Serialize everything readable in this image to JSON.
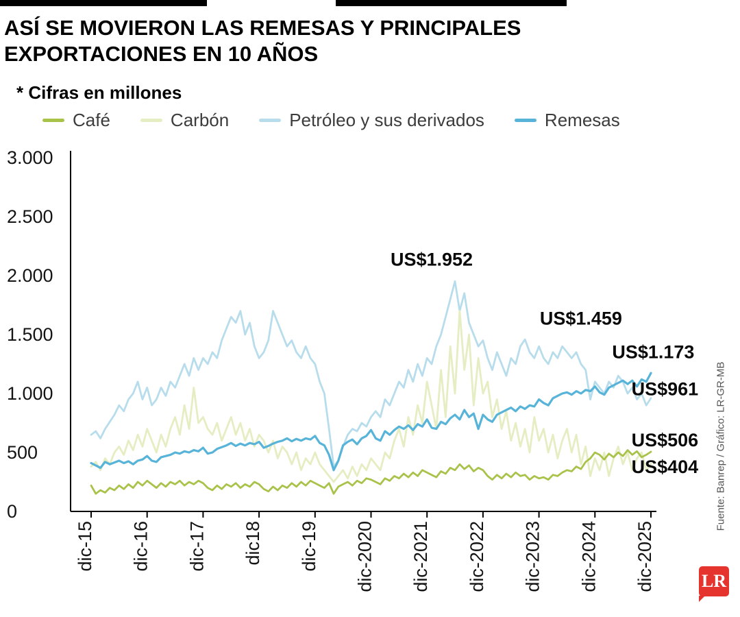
{
  "page": {
    "title_line1": "ASÍ SE MOVIERON LAS REMESAS Y PRINCIPALES",
    "title_line2": "EXPORTACIONES EN 10 AÑOS",
    "subtitle": "* Cifras en millones",
    "source": "Fuente: Banrep / Gráfico: LR-GR-MB",
    "logo_text": "LR",
    "logo_color": "#e5332d"
  },
  "chart_data": {
    "type": "line",
    "title": "Así se movieron las remesas y principales exportaciones en 10 años",
    "note": "* Cifras en millones",
    "grid": false,
    "legend_position": "top",
    "ylim": [
      0,
      3000
    ],
    "y_ticks": [
      0,
      500,
      1000,
      1500,
      2000,
      2500,
      3000
    ],
    "y_tick_labels": [
      "0",
      "500",
      "1.000",
      "1.500",
      "2.000",
      "2.500",
      "3.000"
    ],
    "x_tick_labels": [
      "dic-15",
      "dic-16",
      "dic-17",
      "dic18",
      "dic-19",
      "dic-2020",
      "dic-2021",
      "dic-2022",
      "dic-2023",
      "dic-2024",
      "dic-2025"
    ],
    "x_frequency": "monthly",
    "series": [
      {
        "name": "Café",
        "key": "cafe",
        "color": "#a9c24a",
        "values": [
          220,
          150,
          180,
          160,
          200,
          180,
          220,
          190,
          230,
          200,
          250,
          220,
          260,
          230,
          200,
          240,
          210,
          250,
          230,
          260,
          220,
          250,
          230,
          260,
          240,
          200,
          180,
          220,
          190,
          230,
          210,
          240,
          200,
          230,
          210,
          250,
          230,
          190,
          170,
          210,
          180,
          220,
          200,
          240,
          210,
          250,
          220,
          260,
          240,
          220,
          200,
          240,
          150,
          210,
          230,
          250,
          220,
          260,
          240,
          280,
          270,
          250,
          230,
          280,
          260,
          300,
          280,
          320,
          290,
          330,
          300,
          350,
          330,
          310,
          290,
          340,
          320,
          370,
          350,
          400,
          360,
          390,
          340,
          370,
          350,
          300,
          270,
          310,
          280,
          320,
          290,
          330,
          300,
          310,
          270,
          300,
          280,
          290,
          270,
          310,
          300,
          330,
          350,
          340,
          380,
          360,
          420,
          450,
          500,
          480,
          440,
          490,
          460,
          500,
          470,
          520,
          480,
          510,
          460,
          480,
          506
        ]
      },
      {
        "name": "Carbón",
        "key": "carbon",
        "color": "#e5edc2",
        "values": [
          380,
          420,
          350,
          450,
          400,
          500,
          550,
          480,
          600,
          520,
          650,
          550,
          700,
          600,
          500,
          650,
          550,
          700,
          800,
          650,
          900,
          700,
          1050,
          750,
          800,
          700,
          650,
          750,
          600,
          700,
          800,
          650,
          750,
          600,
          700,
          550,
          650,
          600,
          500,
          600,
          450,
          550,
          500,
          400,
          500,
          350,
          450,
          400,
          500,
          400,
          350,
          300,
          250,
          300,
          350,
          280,
          380,
          300,
          400,
          350,
          450,
          400,
          350,
          500,
          450,
          600,
          700,
          550,
          800,
          650,
          900,
          750,
          1100,
          900,
          700,
          1200,
          800,
          1400,
          1000,
          1700,
          1200,
          1500,
          900,
          1300,
          1000,
          1100,
          800,
          950,
          700,
          850,
          600,
          750,
          550,
          700,
          500,
          800,
          600,
          700,
          500,
          650,
          450,
          600,
          700,
          500,
          650,
          400,
          550,
          300,
          450,
          350,
          500,
          300,
          450,
          550,
          400,
          500,
          350,
          450,
          500,
          350,
          404
        ]
      },
      {
        "name": "Petróleo y sus derivados",
        "key": "petroleo",
        "color": "#b7dcec",
        "values": [
          650,
          680,
          620,
          700,
          760,
          820,
          900,
          850,
          950,
          1000,
          1100,
          950,
          1050,
          900,
          950,
          1050,
          980,
          1100,
          1050,
          1150,
          1250,
          1150,
          1300,
          1200,
          1300,
          1250,
          1350,
          1300,
          1450,
          1550,
          1650,
          1600,
          1700,
          1500,
          1600,
          1400,
          1300,
          1350,
          1450,
          1700,
          1600,
          1500,
          1400,
          1450,
          1350,
          1300,
          1400,
          1300,
          1250,
          1100,
          1000,
          700,
          380,
          430,
          550,
          650,
          700,
          680,
          750,
          720,
          800,
          850,
          800,
          950,
          900,
          1000,
          1100,
          1050,
          1200,
          1100,
          1250,
          1150,
          1300,
          1250,
          1400,
          1500,
          1650,
          1800,
          1952,
          1700,
          1850,
          1600,
          1500,
          1400,
          1450,
          1300,
          1200,
          1350,
          1250,
          1150,
          1300,
          1250,
          1400,
          1459,
          1350,
          1300,
          1400,
          1300,
          1250,
          1350,
          1300,
          1400,
          1350,
          1300,
          1350,
          1250,
          1200,
          950,
          1100,
          1050,
          1000,
          1100,
          1050,
          1150,
          1100,
          1000,
          1050,
          950,
          1000,
          900,
          961
        ]
      },
      {
        "name": "Remesas",
        "key": "remesas",
        "color": "#57b4d8",
        "values": [
          410,
          390,
          370,
          420,
          400,
          415,
          430,
          410,
          425,
          400,
          430,
          440,
          470,
          430,
          420,
          460,
          470,
          480,
          500,
          490,
          510,
          500,
          520,
          510,
          540,
          490,
          500,
          530,
          545,
          560,
          580,
          555,
          575,
          560,
          580,
          570,
          590,
          540,
          555,
          575,
          590,
          600,
          620,
          595,
          615,
          600,
          620,
          610,
          640,
          580,
          560,
          480,
          350,
          430,
          560,
          590,
          610,
          570,
          620,
          640,
          690,
          620,
          600,
          680,
          650,
          690,
          720,
          700,
          730,
          690,
          740,
          720,
          780,
          710,
          700,
          760,
          740,
          790,
          820,
          780,
          860,
          800,
          830,
          700,
          820,
          780,
          760,
          820,
          840,
          860,
          880,
          850,
          890,
          870,
          900,
          890,
          950,
          920,
          900,
          960,
          980,
          1000,
          1010,
          990,
          1020,
          1000,
          1030,
          1020,
          1060,
          1010,
          990,
          1050,
          1070,
          1090,
          1110,
          1080,
          1110,
          1060,
          1120,
          1100,
          1173
        ]
      }
    ],
    "annotations": [
      {
        "text": "US$1.952",
        "x_index": 73,
        "y_value": 2085
      },
      {
        "text": "US$1.459",
        "x_index": 105,
        "y_value": 1585
      },
      {
        "text": "US$1.173",
        "x_index": 120.5,
        "y_value": 1300
      },
      {
        "text": "US$961",
        "x_index": 123,
        "y_value": 985
      },
      {
        "text": "US$506",
        "x_index": 123,
        "y_value": 552
      },
      {
        "text": "US$404",
        "x_index": 123,
        "y_value": 325
      }
    ]
  }
}
